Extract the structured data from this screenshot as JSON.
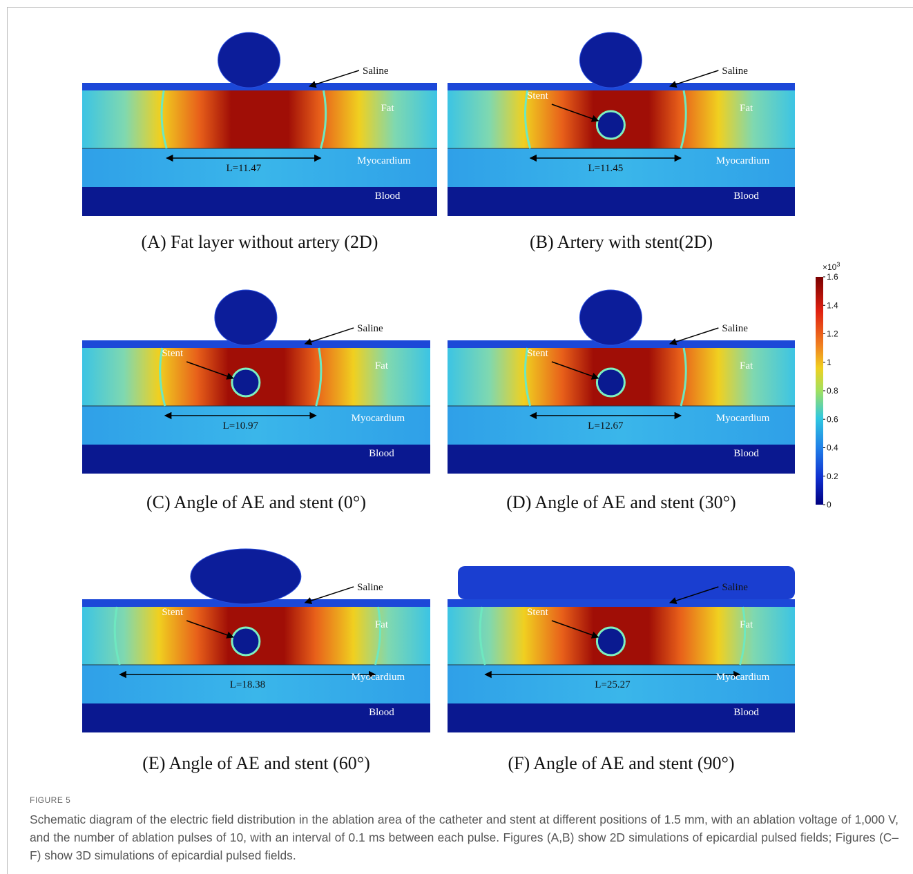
{
  "panels": [
    {
      "caption": "(A) Fat layer without artery (2D)",
      "saline": "Saline",
      "fat": "Fat",
      "myocardium": "Myocardium",
      "blood": "Blood",
      "length": "L=11.47"
    },
    {
      "caption": "(B) Artery with stent(2D)",
      "saline": "Saline",
      "stent": "Stent",
      "fat": "Fat",
      "myocardium": "Myocardium",
      "blood": "Blood",
      "length": "L=11.45"
    },
    {
      "caption": "(C) Angle of AE and stent (0°)",
      "saline": "Saline",
      "stent": "Stent",
      "fat": "Fat",
      "myocardium": "Myocardium",
      "blood": "Blood",
      "length": "L=10.97"
    },
    {
      "caption": "(D) Angle of AE and stent (30°)",
      "saline": "Saline",
      "stent": "Stent",
      "fat": "Fat",
      "myocardium": "Myocardium",
      "blood": "Blood",
      "length": "L=12.67"
    },
    {
      "caption": "(E) Angle of AE and stent (60°)",
      "saline": "Saline",
      "stent": "Stent",
      "fat": "Fat",
      "myocardium": "Myocardium",
      "blood": "Blood",
      "length": "L=18.38"
    },
    {
      "caption": "(F) Angle of AE and stent (90°)",
      "saline": "Saline",
      "stent": "Stent",
      "fat": "Fat",
      "myocardium": "Myocardium",
      "blood": "Blood",
      "length": "L=25.27"
    }
  ],
  "colorbar": {
    "scale": "×10",
    "power": "3",
    "ticks": [
      1.6,
      1.4,
      1.2,
      1,
      0.8,
      0.6,
      0.4,
      0.2,
      0
    ]
  },
  "figure": {
    "label": "FIGURE 5",
    "caption": "Schematic diagram of the electric field distribution in the ablation area of the catheter and stent at different positions of 1.5 mm, with an ablation voltage of 1,000 V, and the number of ablation pulses of 10, with an interval of 0.1 ms between each pulse. Figures (A,B) show 2D simulations of epicardial pulsed fields; Figures (C–F) show 3D simulations of epicardial pulsed fields."
  }
}
